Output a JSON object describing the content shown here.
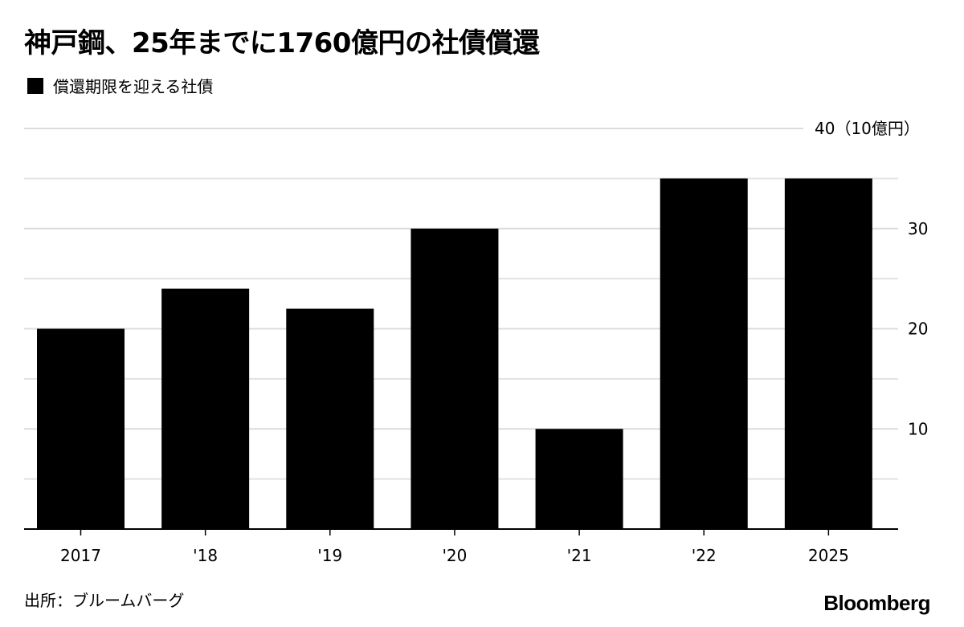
{
  "title": "神戸鋼、25年までに1760億円の社債償還",
  "legend": {
    "label": "償還期限を迎える社債",
    "color": "#000000"
  },
  "source": "出所：ブルームバーグ",
  "logo": "Bloomberg",
  "chart_data": {
    "type": "bar",
    "title": "神戸鋼、25年までに1760億円の社債償還",
    "categories": [
      "2017",
      "'18",
      "'19",
      "'20",
      "'21",
      "'22",
      "2025"
    ],
    "series": [
      {
        "name": "償還期限を迎える社債",
        "values": [
          20,
          24,
          22,
          30,
          10,
          35,
          35
        ],
        "color": "#000000"
      }
    ],
    "ylim": [
      0,
      40
    ],
    "yticks": [
      {
        "value": 10,
        "label": "10"
      },
      {
        "value": 20,
        "label": "20"
      },
      {
        "value": 30,
        "label": "30"
      },
      {
        "value": 40,
        "label": "40（10億円）"
      }
    ],
    "minor_gridlines": [
      5,
      15,
      25,
      35
    ],
    "grid": true,
    "y_axis_position": "right",
    "legend_position": "top-left"
  }
}
